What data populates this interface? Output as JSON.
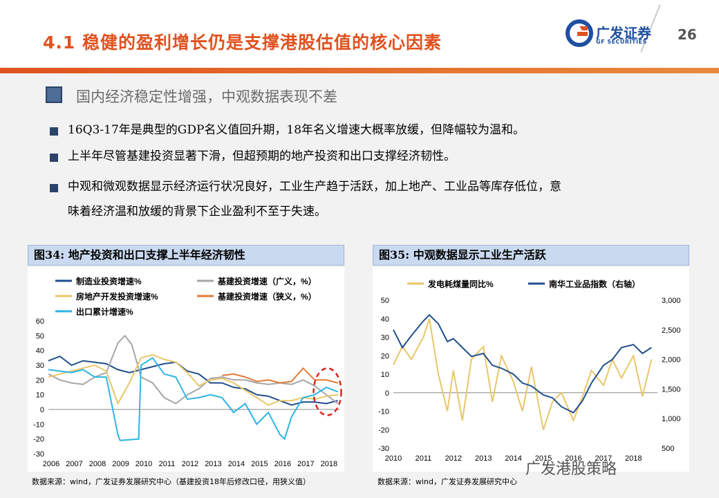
{
  "header": {
    "title": "4.1 稳健的盈利增长仍是支撑港股估值的核心因素",
    "page_number": "26",
    "logo_text": "广发证券",
    "logo_sub": "GF SECURITIES"
  },
  "section": {
    "subtitle": "国内经济稳定性增强，中观数据表现不差",
    "bullets": [
      "16Q3-17年是典型的GDP名义值回升期，18年名义增速大概率放缓，但降幅较为温和。",
      "上半年尽管基建投资显著下滑，但超预期的地产投资和出口支撑经济韧性。",
      "中观和微观数据显示经济运行状况良好，工业生产趋于活跃，加上地产、工业品等库存低位，意",
      "味着经济温和放缓的背景下企业盈利不至于失速。"
    ]
  },
  "figures": {
    "fig34_title": "图34: 地产投资和出口支撑上半年经济韧性",
    "fig35_title": "图35: 中观数据显示工业生产活跃",
    "fig34_source": "数据来源：wind，广发证券发展研究中心（基建投资18年后修改口径，用狭义值）",
    "fig35_source": "数据来源：wind，广发证券发展研究中心"
  },
  "watermark": "广发港股策略",
  "chart_data": [
    {
      "type": "line",
      "title": "图34: 地产投资和出口支撑上半年经济韧性",
      "x_ticks": [
        "2006",
        "2007",
        "2008",
        "2009",
        "2010",
        "2011",
        "2012",
        "2013",
        "2014",
        "2015",
        "2016",
        "2017",
        "2018"
      ],
      "xlim": [
        2006,
        2018.6
      ],
      "ylim": [
        -30,
        60
      ],
      "y_ticks": [
        -30,
        -20,
        -10,
        0,
        10,
        20,
        30,
        40,
        50,
        60
      ],
      "legend": [
        "制造业投资增速%",
        "基建投资增速（广义，%）",
        "房地产开发投资增速%",
        "基建投资增速（狭义，%）",
        "出口累计增速%"
      ],
      "series": [
        {
          "name": "制造业投资增速%",
          "color": "#1f4e8c",
          "x": [
            2006,
            2006.5,
            2007,
            2007.5,
            2008,
            2008.5,
            2009,
            2009.5,
            2010,
            2010.5,
            2011,
            2011.5,
            2012,
            2012.5,
            2013,
            2013.5,
            2014,
            2014.5,
            2015,
            2015.5,
            2016,
            2016.5,
            2017,
            2017.5,
            2018,
            2018.5
          ],
          "y": [
            33,
            36,
            30,
            33,
            32,
            31,
            27,
            25,
            27,
            29,
            31,
            32,
            26,
            24,
            18,
            18,
            15,
            14,
            10,
            9,
            6,
            3,
            5,
            5,
            4,
            6
          ]
        },
        {
          "name": "基建投资增速（广义，%）",
          "color": "#a6a6a6",
          "x": [
            2006,
            2006.5,
            2007,
            2007.5,
            2008,
            2008.5,
            2009,
            2009.3,
            2009.6,
            2010,
            2010.5,
            2011,
            2011.5,
            2012,
            2012.5,
            2013,
            2013.5,
            2014,
            2014.5,
            2015,
            2015.5,
            2016,
            2016.5,
            2017,
            2017.5,
            2018,
            2018.5
          ],
          "y": [
            24,
            20,
            18,
            17,
            22,
            25,
            45,
            50,
            44,
            22,
            18,
            8,
            4,
            10,
            14,
            21,
            22,
            20,
            20,
            18,
            17,
            18,
            17,
            20,
            16,
            10,
            4
          ]
        },
        {
          "name": "房地产开发投资增速%",
          "color": "#e8c66a",
          "x": [
            2006,
            2006.5,
            2007,
            2007.5,
            2008,
            2008.5,
            2009,
            2009.5,
            2010,
            2010.5,
            2011,
            2011.5,
            2012,
            2012.5,
            2013,
            2013.5,
            2014,
            2014.5,
            2015,
            2015.5,
            2016,
            2016.5,
            2017,
            2017.5,
            2018,
            2018.5
          ],
          "y": [
            22,
            24,
            26,
            28,
            30,
            26,
            4,
            18,
            35,
            37,
            34,
            32,
            25,
            16,
            20,
            21,
            18,
            13,
            8,
            3,
            6,
            6,
            8,
            7,
            9,
            10
          ]
        },
        {
          "name": "基建投资增速（狭义，%）",
          "color": "#e07b39",
          "x": [
            2013.5,
            2014,
            2014.5,
            2015,
            2015.5,
            2016,
            2016.5,
            2017,
            2017.5,
            2018,
            2018.5
          ],
          "y": [
            23,
            24,
            22,
            19,
            20,
            18,
            19,
            28,
            20,
            20,
            18
          ]
        },
        {
          "name": "出口累计增速%",
          "color": "#2db4e6",
          "x": [
            2006,
            2006.5,
            2007,
            2007.5,
            2008,
            2008.5,
            2009,
            2009.1,
            2009.9,
            2010,
            2010.5,
            2011,
            2011.5,
            2012,
            2012.5,
            2013,
            2013.5,
            2014,
            2014.5,
            2015,
            2015.5,
            2016,
            2016.2,
            2016.5,
            2017,
            2017.5,
            2018,
            2018.5
          ],
          "y": [
            27,
            26,
            25,
            27,
            22,
            22,
            -17,
            -21,
            -20,
            30,
            35,
            24,
            22,
            7,
            8,
            10,
            8,
            -2,
            4,
            -10,
            -2,
            -17,
            -20,
            -5,
            8,
            10,
            15,
            12
          ]
        }
      ]
    },
    {
      "type": "line",
      "title": "图35: 中观数据显示工业生产活跃",
      "x_ticks": [
        "2010",
        "2011",
        "2012",
        "2013",
        "2014",
        "2015",
        "2016",
        "2017",
        "2018"
      ],
      "xlim": [
        2010,
        2018.8
      ],
      "ylim_left": [
        -30,
        50
      ],
      "ylim_right": [
        500,
        3000
      ],
      "y_ticks_left": [
        -30,
        -20,
        -10,
        0,
        10,
        20,
        30,
        40,
        50
      ],
      "y_ticks_right": [
        "500",
        "1,000",
        "1,500",
        "2,000",
        "2,500",
        "3,000"
      ],
      "legend": [
        "发电耗煤量同比%",
        "南华工业品指数（右轴）"
      ],
      "series": [
        {
          "name": "发电耗煤量同比%",
          "axis": "left",
          "color": "#e8c66a",
          "x": [
            2010,
            2010.3,
            2010.6,
            2011,
            2011.2,
            2011.5,
            2011.8,
            2012,
            2012.3,
            2012.6,
            2013,
            2013.3,
            2013.6,
            2014,
            2014.3,
            2014.6,
            2015,
            2015.3,
            2015.6,
            2016,
            2016.3,
            2016.6,
            2017,
            2017.3,
            2017.6,
            2018,
            2018.3,
            2018.6
          ],
          "y": [
            15,
            25,
            18,
            30,
            40,
            10,
            -10,
            12,
            -15,
            18,
            25,
            -5,
            20,
            6,
            -10,
            14,
            -20,
            -5,
            0,
            -15,
            -2,
            12,
            4,
            18,
            8,
            20,
            -2,
            18
          ]
        },
        {
          "name": "南华工业品指数（右轴）",
          "axis": "right",
          "color": "#1f4e8c",
          "x": [
            2010,
            2010.3,
            2010.6,
            2011,
            2011.2,
            2011.5,
            2011.8,
            2012,
            2012.3,
            2012.6,
            2013,
            2013.3,
            2013.6,
            2014,
            2014.3,
            2014.6,
            2015,
            2015.3,
            2015.6,
            2016,
            2016.3,
            2016.6,
            2017,
            2017.3,
            2017.6,
            2018,
            2018.3,
            2018.6
          ],
          "y": [
            2500,
            2200,
            2400,
            2650,
            2750,
            2600,
            2300,
            2350,
            2200,
            2050,
            2100,
            1900,
            1850,
            1750,
            1600,
            1550,
            1400,
            1350,
            1200,
            1100,
            1300,
            1600,
            1900,
            2000,
            2200,
            2250,
            2100,
            2200
          ]
        }
      ]
    }
  ]
}
